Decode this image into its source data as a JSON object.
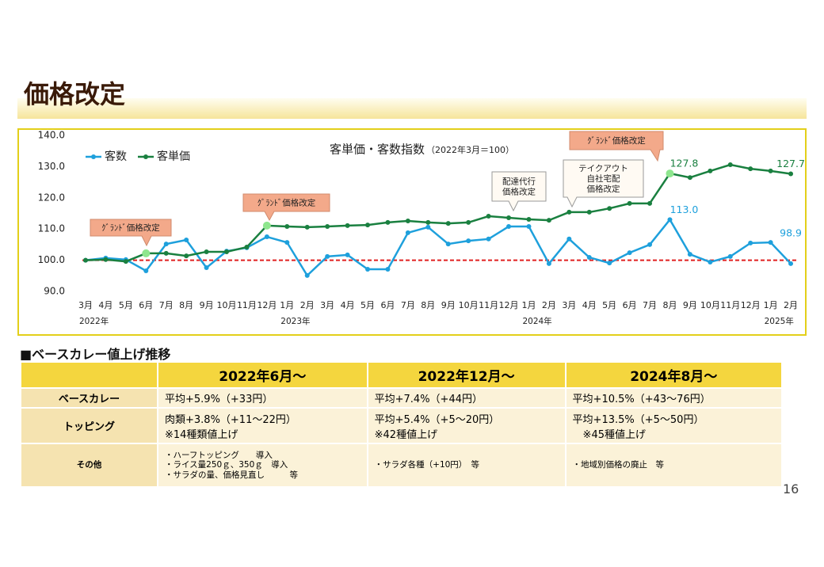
{
  "page_title": "価格改定",
  "chart_data": {
    "type": "line",
    "title": "客単価・客数指数",
    "subtitle": "（2022年3月＝100）",
    "categories": [
      "3月",
      "4月",
      "5月",
      "6月",
      "7月",
      "8月",
      "9月",
      "10月",
      "11月",
      "12月",
      "1月",
      "2月",
      "3月",
      "4月",
      "5月",
      "6月",
      "7月",
      "8月",
      "9月",
      "10月",
      "11月",
      "12月",
      "1月",
      "2月",
      "3月",
      "4月",
      "5月",
      "6月",
      "7月",
      "8月",
      "9月",
      "10月",
      "11月",
      "12月",
      "1月",
      "2月"
    ],
    "x_groups": [
      "2022年",
      null,
      null,
      null,
      null,
      null,
      null,
      null,
      null,
      null,
      "2023年",
      null,
      null,
      null,
      null,
      null,
      null,
      null,
      null,
      null,
      null,
      null,
      "2024年",
      null,
      null,
      null,
      null,
      null,
      null,
      null,
      null,
      null,
      null,
      null,
      "2025年",
      null
    ],
    "series": [
      {
        "name": "客数",
        "color": "#1ea0dc",
        "values": [
          100.0,
          100.7,
          100.2,
          96.6,
          105.2,
          106.5,
          97.6,
          102.9,
          104.0,
          107.5,
          105.7,
          95.1,
          101.2,
          101.7,
          97.1,
          97.1,
          108.8,
          110.6,
          105.2,
          106.2,
          106.8,
          110.8,
          110.8,
          98.9,
          106.8,
          100.9,
          99.1,
          102.4,
          105.0,
          113.0,
          101.9,
          99.4,
          101.2,
          105.5,
          105.7,
          98.9
        ],
        "value_labels": [
          null,
          null,
          null,
          null,
          null,
          null,
          null,
          null,
          null,
          null,
          null,
          null,
          null,
          null,
          null,
          null,
          null,
          null,
          null,
          null,
          null,
          null,
          null,
          null,
          null,
          null,
          null,
          null,
          null,
          "113.0",
          null,
          null,
          null,
          null,
          null,
          "98.9"
        ]
      },
      {
        "name": "客単価",
        "color": "#1a8040",
        "values": [
          100.0,
          100.2,
          99.6,
          102.2,
          102.2,
          101.4,
          102.7,
          102.7,
          104.2,
          111.1,
          110.8,
          110.6,
          110.8,
          111.1,
          111.3,
          112.1,
          112.6,
          112.1,
          111.8,
          112.1,
          114.1,
          113.6,
          113.1,
          112.8,
          115.4,
          115.4,
          116.6,
          118.2,
          118.2,
          127.8,
          126.5,
          128.6,
          130.6,
          129.3,
          128.6,
          127.7
        ],
        "value_labels": [
          null,
          null,
          null,
          null,
          null,
          null,
          null,
          null,
          null,
          null,
          null,
          null,
          null,
          null,
          null,
          null,
          null,
          null,
          null,
          null,
          null,
          null,
          null,
          null,
          null,
          null,
          null,
          null,
          null,
          "127.8",
          null,
          null,
          null,
          null,
          null,
          "127.7"
        ]
      }
    ],
    "ylim": [
      90,
      140
    ],
    "yticks": [
      {
        "value": 90,
        "label": "90.0"
      },
      {
        "value": 100,
        "label": "100.0"
      },
      {
        "value": 110,
        "label": "110.0"
      },
      {
        "value": 120,
        "label": "120.0"
      },
      {
        "value": 130,
        "label": "130.0"
      },
      {
        "value": 140,
        "label": "140.0"
      }
    ],
    "reference_line": 100,
    "reference_color": "#e02020",
    "legend": "top-left",
    "annotations": [
      [
        "ｸﾞﾗﾝﾄﾞ価格改定"
      ],
      [
        "ｸﾞﾗﾝﾄﾞ価格改定"
      ],
      [
        "配達代行",
        "価格改定"
      ],
      [
        "テイクアウト",
        "自社宅配",
        "価格改定"
      ],
      [
        "ｸﾞﾗﾝﾄﾞ価格改定"
      ]
    ]
  },
  "table_title": "■ベースカレー値上げ推移",
  "table": {
    "header": [
      "2022年6月～",
      "2022年12月～",
      "2024年8月～"
    ],
    "rows": [
      [
        "ベースカレー",
        "平均+5.9%（+33円）",
        "平均+7.4%（+44円）",
        "平均+10.5%（+43～76円）"
      ],
      [
        "トッピング",
        "肉類+3.8%（+11～22円）\n※14種類値上げ",
        "平均+5.4%（+5～20円）\n※42種値上げ",
        "平均+13.5%（+5～50円）\n　※45種値上げ"
      ],
      [
        "その他",
        "・ハーフトッピング　　導入\n・ライス量250ｇ、350ｇ　導入\n・サラダの量、価格見直し　　　等",
        "・サラダ各種（+10円）　等",
        "・地域別価格の廃止　等"
      ]
    ]
  },
  "page_number": "16"
}
